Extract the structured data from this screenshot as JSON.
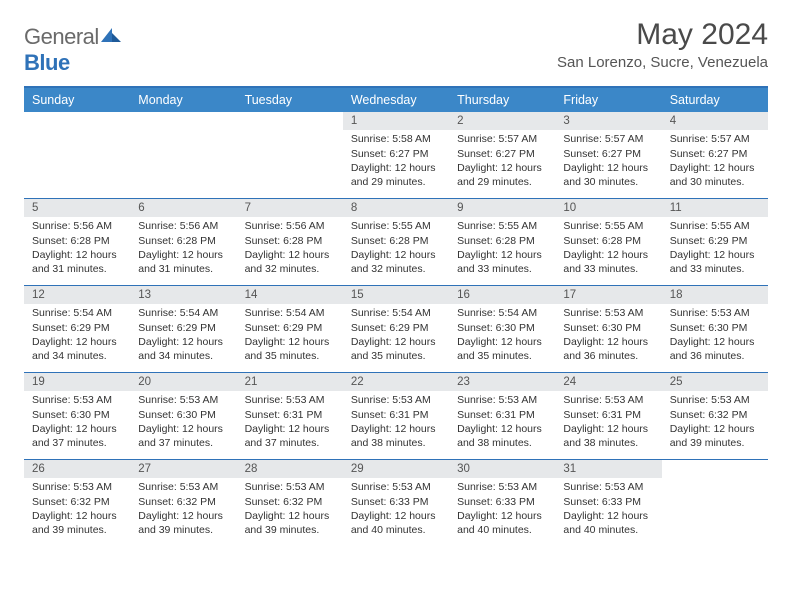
{
  "brand": {
    "name_part1": "General",
    "name_part2": "Blue"
  },
  "title": "May 2024",
  "location": "San Lorenzo, Sucre, Venezuela",
  "colors": {
    "header_bg": "#3b87c8",
    "header_rule": "#2f72b8",
    "daynum_bg": "#e6e8ea",
    "text": "#333333",
    "title_text": "#4a4a4a",
    "subtitle_text": "#555555",
    "brand_gray": "#6a6a6a",
    "brand_blue": "#2f72b8",
    "page_bg": "#ffffff"
  },
  "typography": {
    "title_fontsize": 30,
    "location_fontsize": 15,
    "dayhead_fontsize": 12.5,
    "daynum_fontsize": 11.5,
    "body_fontsize": 10.5
  },
  "day_names": [
    "Sunday",
    "Monday",
    "Tuesday",
    "Wednesday",
    "Thursday",
    "Friday",
    "Saturday"
  ],
  "weeks": [
    [
      null,
      null,
      null,
      {
        "n": "1",
        "sr": "Sunrise: 5:58 AM",
        "ss": "Sunset: 6:27 PM",
        "d1": "Daylight: 12 hours",
        "d2": "and 29 minutes."
      },
      {
        "n": "2",
        "sr": "Sunrise: 5:57 AM",
        "ss": "Sunset: 6:27 PM",
        "d1": "Daylight: 12 hours",
        "d2": "and 29 minutes."
      },
      {
        "n": "3",
        "sr": "Sunrise: 5:57 AM",
        "ss": "Sunset: 6:27 PM",
        "d1": "Daylight: 12 hours",
        "d2": "and 30 minutes."
      },
      {
        "n": "4",
        "sr": "Sunrise: 5:57 AM",
        "ss": "Sunset: 6:27 PM",
        "d1": "Daylight: 12 hours",
        "d2": "and 30 minutes."
      }
    ],
    [
      {
        "n": "5",
        "sr": "Sunrise: 5:56 AM",
        "ss": "Sunset: 6:28 PM",
        "d1": "Daylight: 12 hours",
        "d2": "and 31 minutes."
      },
      {
        "n": "6",
        "sr": "Sunrise: 5:56 AM",
        "ss": "Sunset: 6:28 PM",
        "d1": "Daylight: 12 hours",
        "d2": "and 31 minutes."
      },
      {
        "n": "7",
        "sr": "Sunrise: 5:56 AM",
        "ss": "Sunset: 6:28 PM",
        "d1": "Daylight: 12 hours",
        "d2": "and 32 minutes."
      },
      {
        "n": "8",
        "sr": "Sunrise: 5:55 AM",
        "ss": "Sunset: 6:28 PM",
        "d1": "Daylight: 12 hours",
        "d2": "and 32 minutes."
      },
      {
        "n": "9",
        "sr": "Sunrise: 5:55 AM",
        "ss": "Sunset: 6:28 PM",
        "d1": "Daylight: 12 hours",
        "d2": "and 33 minutes."
      },
      {
        "n": "10",
        "sr": "Sunrise: 5:55 AM",
        "ss": "Sunset: 6:28 PM",
        "d1": "Daylight: 12 hours",
        "d2": "and 33 minutes."
      },
      {
        "n": "11",
        "sr": "Sunrise: 5:55 AM",
        "ss": "Sunset: 6:29 PM",
        "d1": "Daylight: 12 hours",
        "d2": "and 33 minutes."
      }
    ],
    [
      {
        "n": "12",
        "sr": "Sunrise: 5:54 AM",
        "ss": "Sunset: 6:29 PM",
        "d1": "Daylight: 12 hours",
        "d2": "and 34 minutes."
      },
      {
        "n": "13",
        "sr": "Sunrise: 5:54 AM",
        "ss": "Sunset: 6:29 PM",
        "d1": "Daylight: 12 hours",
        "d2": "and 34 minutes."
      },
      {
        "n": "14",
        "sr": "Sunrise: 5:54 AM",
        "ss": "Sunset: 6:29 PM",
        "d1": "Daylight: 12 hours",
        "d2": "and 35 minutes."
      },
      {
        "n": "15",
        "sr": "Sunrise: 5:54 AM",
        "ss": "Sunset: 6:29 PM",
        "d1": "Daylight: 12 hours",
        "d2": "and 35 minutes."
      },
      {
        "n": "16",
        "sr": "Sunrise: 5:54 AM",
        "ss": "Sunset: 6:30 PM",
        "d1": "Daylight: 12 hours",
        "d2": "and 35 minutes."
      },
      {
        "n": "17",
        "sr": "Sunrise: 5:53 AM",
        "ss": "Sunset: 6:30 PM",
        "d1": "Daylight: 12 hours",
        "d2": "and 36 minutes."
      },
      {
        "n": "18",
        "sr": "Sunrise: 5:53 AM",
        "ss": "Sunset: 6:30 PM",
        "d1": "Daylight: 12 hours",
        "d2": "and 36 minutes."
      }
    ],
    [
      {
        "n": "19",
        "sr": "Sunrise: 5:53 AM",
        "ss": "Sunset: 6:30 PM",
        "d1": "Daylight: 12 hours",
        "d2": "and 37 minutes."
      },
      {
        "n": "20",
        "sr": "Sunrise: 5:53 AM",
        "ss": "Sunset: 6:30 PM",
        "d1": "Daylight: 12 hours",
        "d2": "and 37 minutes."
      },
      {
        "n": "21",
        "sr": "Sunrise: 5:53 AM",
        "ss": "Sunset: 6:31 PM",
        "d1": "Daylight: 12 hours",
        "d2": "and 37 minutes."
      },
      {
        "n": "22",
        "sr": "Sunrise: 5:53 AM",
        "ss": "Sunset: 6:31 PM",
        "d1": "Daylight: 12 hours",
        "d2": "and 38 minutes."
      },
      {
        "n": "23",
        "sr": "Sunrise: 5:53 AM",
        "ss": "Sunset: 6:31 PM",
        "d1": "Daylight: 12 hours",
        "d2": "and 38 minutes."
      },
      {
        "n": "24",
        "sr": "Sunrise: 5:53 AM",
        "ss": "Sunset: 6:31 PM",
        "d1": "Daylight: 12 hours",
        "d2": "and 38 minutes."
      },
      {
        "n": "25",
        "sr": "Sunrise: 5:53 AM",
        "ss": "Sunset: 6:32 PM",
        "d1": "Daylight: 12 hours",
        "d2": "and 39 minutes."
      }
    ],
    [
      {
        "n": "26",
        "sr": "Sunrise: 5:53 AM",
        "ss": "Sunset: 6:32 PM",
        "d1": "Daylight: 12 hours",
        "d2": "and 39 minutes."
      },
      {
        "n": "27",
        "sr": "Sunrise: 5:53 AM",
        "ss": "Sunset: 6:32 PM",
        "d1": "Daylight: 12 hours",
        "d2": "and 39 minutes."
      },
      {
        "n": "28",
        "sr": "Sunrise: 5:53 AM",
        "ss": "Sunset: 6:32 PM",
        "d1": "Daylight: 12 hours",
        "d2": "and 39 minutes."
      },
      {
        "n": "29",
        "sr": "Sunrise: 5:53 AM",
        "ss": "Sunset: 6:33 PM",
        "d1": "Daylight: 12 hours",
        "d2": "and 40 minutes."
      },
      {
        "n": "30",
        "sr": "Sunrise: 5:53 AM",
        "ss": "Sunset: 6:33 PM",
        "d1": "Daylight: 12 hours",
        "d2": "and 40 minutes."
      },
      {
        "n": "31",
        "sr": "Sunrise: 5:53 AM",
        "ss": "Sunset: 6:33 PM",
        "d1": "Daylight: 12 hours",
        "d2": "and 40 minutes."
      },
      null
    ]
  ]
}
